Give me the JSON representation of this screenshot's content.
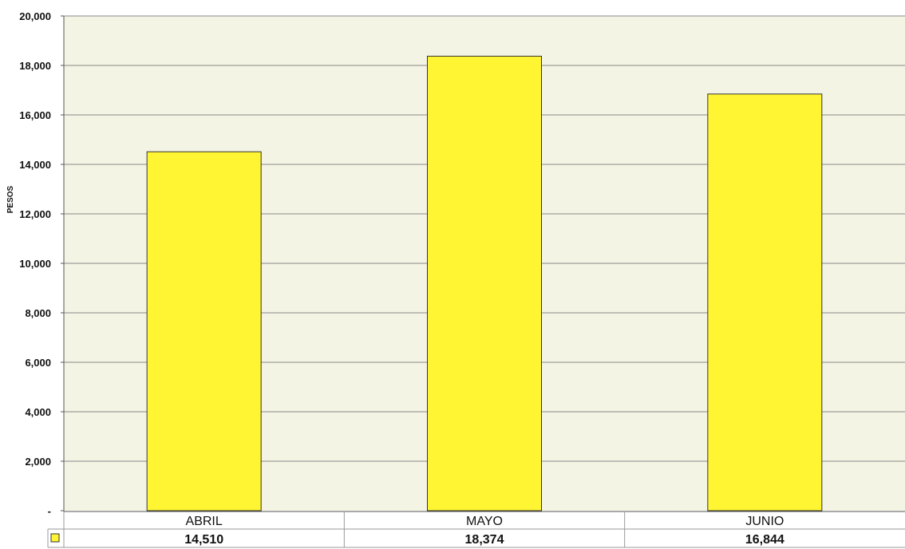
{
  "chart_data": {
    "type": "bar",
    "categories": [
      "ABRIL",
      "MAYO",
      "JUNIO"
    ],
    "values": [
      14510,
      18374,
      16844
    ],
    "value_labels": [
      "14,510",
      "18,374",
      "16,844"
    ],
    "title": "",
    "xlabel": "",
    "ylabel": "PESOS",
    "ylim": [
      0,
      20000
    ],
    "yticks": [
      0,
      2000,
      4000,
      6000,
      8000,
      10000,
      12000,
      14000,
      16000,
      18000,
      20000
    ],
    "ytick_labels": [
      "-",
      "2,000",
      "4,000",
      "6,000",
      "8,000",
      "10,000",
      "12,000",
      "14,000",
      "16,000",
      "18,000",
      "20,000"
    ],
    "grid": true,
    "data_table": true,
    "colors": {
      "bar": "#FFF533",
      "plot_bg": "#F4F4E4",
      "grid": "#888888"
    }
  }
}
